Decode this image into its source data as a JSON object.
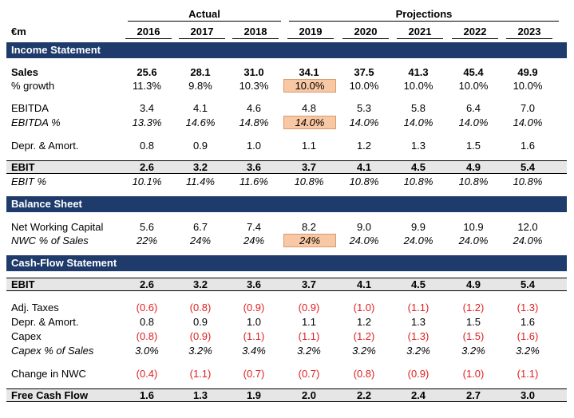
{
  "header": {
    "unit": "€m",
    "group_actual": "Actual",
    "group_projections": "Projections",
    "years": [
      "2016",
      "2017",
      "2018",
      "2019",
      "2020",
      "2021",
      "2022",
      "2023"
    ]
  },
  "sections": {
    "income": "Income Statement",
    "balance": "Balance Sheet",
    "cashflow": "Cash-Flow Statement"
  },
  "rows": {
    "sales": {
      "label": "Sales",
      "values": [
        "25.6",
        "28.1",
        "31.0",
        "34.1",
        "37.5",
        "41.3",
        "45.4",
        "49.9"
      ]
    },
    "growth": {
      "label": "% growth",
      "values": [
        "11.3%",
        "9.8%",
        "10.3%",
        "10.0%",
        "10.0%",
        "10.0%",
        "10.0%",
        "10.0%"
      ]
    },
    "ebitda": {
      "label": "EBITDA",
      "values": [
        "3.4",
        "4.1",
        "4.6",
        "4.8",
        "5.3",
        "5.8",
        "6.4",
        "7.0"
      ]
    },
    "ebitda_pct": {
      "label": "EBITDA %",
      "values": [
        "13.3%",
        "14.6%",
        "14.8%",
        "14.0%",
        "14.0%",
        "14.0%",
        "14.0%",
        "14.0%"
      ]
    },
    "depr": {
      "label": "Depr. & Amort.",
      "values": [
        "0.8",
        "0.9",
        "1.0",
        "1.1",
        "1.2",
        "1.3",
        "1.5",
        "1.6"
      ]
    },
    "ebit": {
      "label": "EBIT",
      "values": [
        "2.6",
        "3.2",
        "3.6",
        "3.7",
        "4.1",
        "4.5",
        "4.9",
        "5.4"
      ]
    },
    "ebit_pct": {
      "label": "EBIT %",
      "values": [
        "10.1%",
        "11.4%",
        "11.6%",
        "10.8%",
        "10.8%",
        "10.8%",
        "10.8%",
        "10.8%"
      ]
    },
    "nwc": {
      "label": "Net Working Capital",
      "values": [
        "5.6",
        "6.7",
        "7.4",
        "8.2",
        "9.0",
        "9.9",
        "10.9",
        "12.0"
      ]
    },
    "nwc_pct": {
      "label": "NWC % of Sales",
      "values": [
        "22%",
        "24%",
        "24%",
        "24%",
        "24.0%",
        "24.0%",
        "24.0%",
        "24.0%"
      ]
    },
    "cf_ebit": {
      "label": "EBIT",
      "values": [
        "2.6",
        "3.2",
        "3.6",
        "3.7",
        "4.1",
        "4.5",
        "4.9",
        "5.4"
      ]
    },
    "taxes": {
      "label": "Adj. Taxes",
      "values": [
        "(0.6)",
        "(0.8)",
        "(0.9)",
        "(0.9)",
        "(1.0)",
        "(1.1)",
        "(1.2)",
        "(1.3)"
      ]
    },
    "cf_depr": {
      "label": "Depr. & Amort.",
      "values": [
        "0.8",
        "0.9",
        "1.0",
        "1.1",
        "1.2",
        "1.3",
        "1.5",
        "1.6"
      ]
    },
    "capex": {
      "label": "Capex",
      "values": [
        "(0.8)",
        "(0.9)",
        "(1.1)",
        "(1.1)",
        "(1.2)",
        "(1.3)",
        "(1.5)",
        "(1.6)"
      ]
    },
    "capex_pct": {
      "label": "Capex % of Sales",
      "values": [
        "3.0%",
        "3.2%",
        "3.4%",
        "3.2%",
        "3.2%",
        "3.2%",
        "3.2%",
        "3.2%"
      ]
    },
    "chg_nwc": {
      "label": "Change in NWC",
      "values": [
        "(0.4)",
        "(1.1)",
        "(0.7)",
        "(0.7)",
        "(0.8)",
        "(0.9)",
        "(1.0)",
        "(1.1)"
      ]
    },
    "fcf": {
      "label": "Free Cash Flow",
      "values": [
        "1.6",
        "1.3",
        "1.9",
        "2.0",
        "2.2",
        "2.4",
        "2.7",
        "3.0"
      ]
    }
  },
  "colors": {
    "section_bg": "#1f3b6b",
    "highlight_bg": "#f8c7a3",
    "negative": "#e02020",
    "subtotal_bg": "#e6e6e6"
  }
}
